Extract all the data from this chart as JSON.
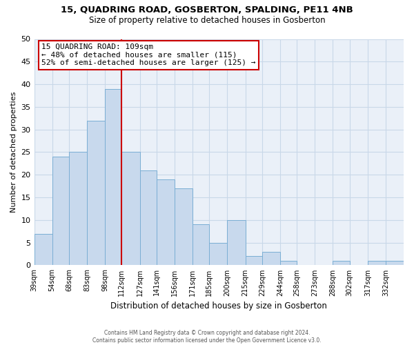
{
  "title": "15, QUADRING ROAD, GOSBERTON, SPALDING, PE11 4NB",
  "subtitle": "Size of property relative to detached houses in Gosberton",
  "xlabel": "Distribution of detached houses by size in Gosberton",
  "ylabel": "Number of detached properties",
  "bins": [
    39,
    54,
    68,
    83,
    98,
    112,
    127,
    141,
    156,
    171,
    185,
    200,
    215,
    229,
    244,
    258,
    273,
    288,
    302,
    317,
    332
  ],
  "bin_labels": [
    "39sqm",
    "54sqm",
    "68sqm",
    "83sqm",
    "98sqm",
    "112sqm",
    "127sqm",
    "141sqm",
    "156sqm",
    "171sqm",
    "185sqm",
    "200sqm",
    "215sqm",
    "229sqm",
    "244sqm",
    "258sqm",
    "273sqm",
    "288sqm",
    "302sqm",
    "317sqm",
    "332sqm"
  ],
  "values": [
    7,
    24,
    25,
    32,
    39,
    25,
    21,
    19,
    17,
    9,
    5,
    10,
    2,
    3,
    1,
    0,
    0,
    1,
    0,
    1,
    1
  ],
  "bar_color": "#c8d9ed",
  "bar_edge_color": "#7aaed4",
  "vline_x": 112,
  "vline_color": "#cc0000",
  "annotation_title": "15 QUADRING ROAD: 109sqm",
  "annotation_line1": "← 48% of detached houses are smaller (115)",
  "annotation_line2": "52% of semi-detached houses are larger (125) →",
  "annotation_box_color": "#ffffff",
  "annotation_box_edge": "#cc0000",
  "ylim": [
    0,
    50
  ],
  "yticks": [
    0,
    5,
    10,
    15,
    20,
    25,
    30,
    35,
    40,
    45,
    50
  ],
  "footer_line1": "Contains HM Land Registry data © Crown copyright and database right 2024.",
  "footer_line2": "Contains public sector information licensed under the Open Government Licence v3.0.",
  "bg_color": "#ffffff",
  "grid_color": "#c8d8e8",
  "plot_bg_color": "#eaf0f8"
}
